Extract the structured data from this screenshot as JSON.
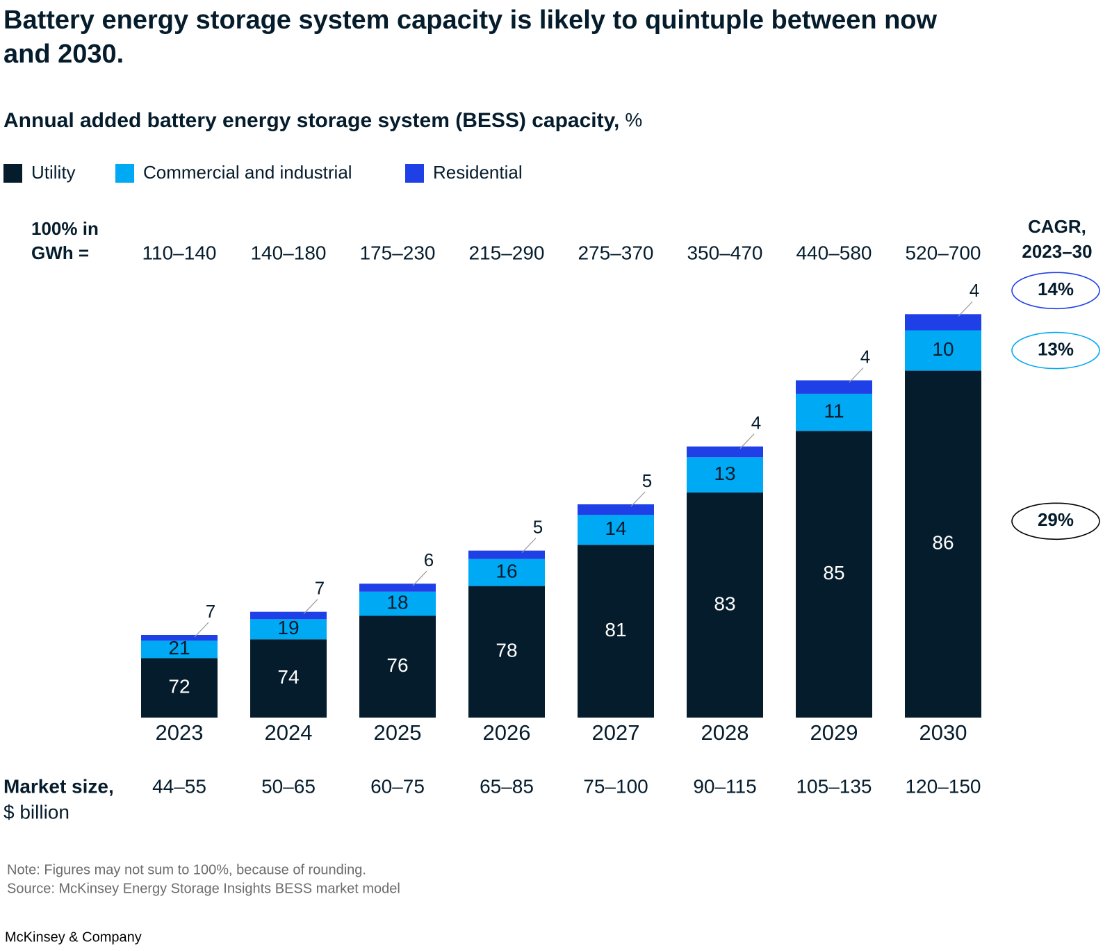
{
  "chart_data": {
    "type": "stacked-bar",
    "title_lines": [
      "Battery energy storage system capacity is likely to quintuple between now",
      "and 2030."
    ],
    "subtitle": "Annual added battery energy storage system (BESS) capacity,",
    "subtitle_unit": "%",
    "categories": [
      "2023",
      "2024",
      "2025",
      "2026",
      "2027",
      "2028",
      "2029",
      "2030"
    ],
    "capacity_header": [
      "100% in",
      "GWh ="
    ],
    "capacity_gwh": [
      {
        "low": 110,
        "high": 140,
        "label": "110–140"
      },
      {
        "low": 140,
        "high": 180,
        "label": "140–180"
      },
      {
        "low": 175,
        "high": 230,
        "label": "175–230"
      },
      {
        "low": 215,
        "high": 290,
        "label": "215–290"
      },
      {
        "low": 275,
        "high": 370,
        "label": "275–370"
      },
      {
        "low": 350,
        "high": 470,
        "label": "350–470"
      },
      {
        "low": 440,
        "high": 580,
        "label": "440–580"
      },
      {
        "low": 520,
        "high": 700,
        "label": "520–700"
      }
    ],
    "cagr_header": [
      "CAGR,",
      "2023–30"
    ],
    "series": [
      {
        "name": "Utility",
        "color": "#051c2c",
        "values": [
          72,
          74,
          76,
          78,
          81,
          83,
          85,
          86
        ],
        "cagr": {
          "value": 29,
          "label": "29%"
        }
      },
      {
        "name": "Commercial and industrial",
        "color": "#00a9f4",
        "values": [
          21,
          19,
          18,
          16,
          14,
          13,
          11,
          10
        ],
        "cagr": {
          "value": 13,
          "label": "13%"
        }
      },
      {
        "name": "Residential",
        "color": "#1f40e6",
        "values": [
          7,
          7,
          6,
          5,
          5,
          4,
          4,
          4
        ],
        "cagr": {
          "value": 14,
          "label": "14%"
        }
      }
    ],
    "market_size_header": [
      "Market size,",
      "$ billion"
    ],
    "market_size": [
      "44–55",
      "50–65",
      "60–75",
      "65–85",
      "75–100",
      "90–115",
      "105–135",
      "120–150"
    ],
    "note": "Note: Figures may not sum to 100%, because of rounding.",
    "source": "Source: McKinsey Energy Storage Insights BESS market model",
    "footer": "McKinsey & Company"
  }
}
